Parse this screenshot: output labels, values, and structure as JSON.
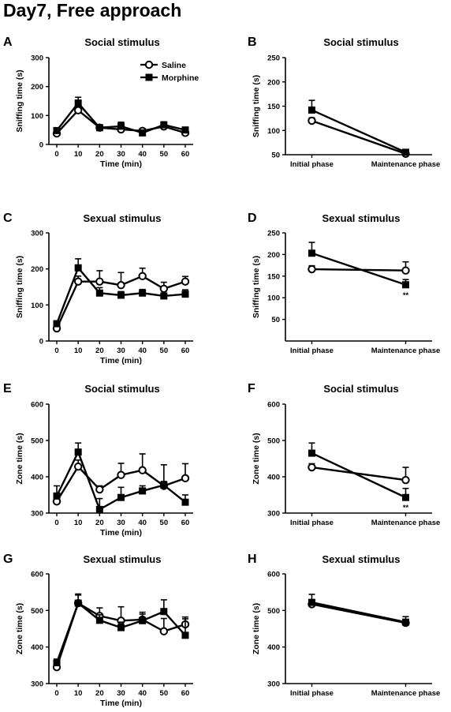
{
  "figure": {
    "title": "Day7, Free approach"
  },
  "legend": {
    "items": [
      "Saline",
      "Morphine"
    ]
  },
  "chart_data": [
    {
      "letter": "A",
      "type": "line",
      "title": "Social stimulus",
      "xlabel": "Time (min)",
      "ylabel": "Sniffing time (s)",
      "x": [
        0,
        10,
        20,
        30,
        40,
        50,
        60
      ],
      "xticks": [
        "0",
        "10",
        "20",
        "30",
        "40",
        "50",
        "60"
      ],
      "ylim": [
        0,
        300
      ],
      "yticks": [
        0,
        100,
        200,
        300
      ],
      "series": [
        {
          "name": "Saline",
          "marker": "circle",
          "values": [
            38,
            118,
            58,
            52,
            47,
            62,
            40
          ],
          "err": [
            5,
            12,
            5,
            12,
            8,
            10,
            13
          ]
        },
        {
          "name": "Morphine",
          "marker": "square",
          "values": [
            48,
            143,
            58,
            63,
            40,
            68,
            50
          ],
          "err": [
            5,
            20,
            5,
            14,
            10,
            10,
            8
          ]
        }
      ]
    },
    {
      "letter": "B",
      "type": "line",
      "title": "Social stimulus",
      "xlabel": "",
      "ylabel": "Sniffing time (s)",
      "x": [
        "Initial phase",
        "Maintenance phase"
      ],
      "xticks": [
        "Initial phase",
        "Maintenance phase"
      ],
      "ylim": [
        50,
        250
      ],
      "yticks": [
        50,
        100,
        150,
        200,
        250
      ],
      "series": [
        {
          "name": "Saline",
          "marker": "circle",
          "values": [
            120,
            52
          ],
          "err": [
            6,
            3
          ]
        },
        {
          "name": "Morphine",
          "marker": "square",
          "values": [
            142,
            55
          ],
          "err": [
            20,
            4
          ]
        }
      ]
    },
    {
      "letter": "C",
      "type": "line",
      "title": "Sexual stimulus",
      "xlabel": "Time (min)",
      "ylabel": "Sniffing time (s)",
      "x": [
        0,
        10,
        20,
        30,
        40,
        50,
        60
      ],
      "xticks": [
        "0",
        "10",
        "20",
        "30",
        "40",
        "50",
        "60"
      ],
      "ylim": [
        0,
        300
      ],
      "yticks": [
        0,
        100,
        200,
        300
      ],
      "series": [
        {
          "name": "Saline",
          "marker": "circle",
          "values": [
            35,
            165,
            165,
            155,
            180,
            145,
            165
          ],
          "err": [
            5,
            15,
            30,
            35,
            22,
            18,
            14
          ]
        },
        {
          "name": "Morphine",
          "marker": "square",
          "values": [
            48,
            203,
            133,
            127,
            133,
            125,
            130
          ],
          "err": [
            6,
            25,
            15,
            10,
            10,
            8,
            12
          ]
        }
      ]
    },
    {
      "letter": "D",
      "type": "line",
      "title": "Sexual stimulus",
      "xlabel": "",
      "ylabel": "Sniffing time (s)",
      "x": [
        "Initial phase",
        "Maintenance phase"
      ],
      "xticks": [
        "Initial phase",
        "Maintenance phase"
      ],
      "ylim": [
        0,
        250
      ],
      "yticks": [
        50,
        100,
        150,
        200,
        250
      ],
      "annotations": [
        {
          "x": "Maintenance phase",
          "text": "**"
        }
      ],
      "series": [
        {
          "name": "Saline",
          "marker": "circle",
          "values": [
            166,
            163
          ],
          "err": [
            8,
            20
          ]
        },
        {
          "name": "Morphine",
          "marker": "square",
          "values": [
            203,
            130
          ],
          "err": [
            25,
            12
          ]
        }
      ]
    },
    {
      "letter": "E",
      "type": "line",
      "title": "Social stimulus",
      "xlabel": "Time (min)",
      "ylabel": "Zone time (s)",
      "x": [
        0,
        10,
        20,
        30,
        40,
        50,
        60
      ],
      "xticks": [
        "0",
        "10",
        "20",
        "30",
        "40",
        "50",
        "60"
      ],
      "ylim": [
        300,
        600
      ],
      "yticks": [
        300,
        400,
        500,
        600
      ],
      "series": [
        {
          "name": "Saline",
          "marker": "circle",
          "values": [
            332,
            428,
            365,
            405,
            418,
            375,
            396
          ],
          "err": [
            12,
            18,
            10,
            32,
            45,
            58,
            40
          ]
        },
        {
          "name": "Morphine",
          "marker": "square",
          "values": [
            347,
            468,
            310,
            343,
            361,
            377,
            330
          ],
          "err": [
            28,
            25,
            30,
            28,
            14,
            10,
            20
          ]
        }
      ]
    },
    {
      "letter": "F",
      "type": "line",
      "title": "Social stimulus",
      "xlabel": "",
      "ylabel": "Zone time (s)",
      "x": [
        "Initial phase",
        "Maintenance phase"
      ],
      "xticks": [
        "Initial phase",
        "Maintenance phase"
      ],
      "ylim": [
        300,
        600
      ],
      "yticks": [
        300,
        400,
        500,
        600
      ],
      "annotations": [
        {
          "x": "Maintenance phase",
          "text": "**"
        }
      ],
      "series": [
        {
          "name": "Saline",
          "marker": "circle",
          "values": [
            426,
            391
          ],
          "err": [
            10,
            35
          ]
        },
        {
          "name": "Morphine",
          "marker": "square",
          "values": [
            465,
            343
          ],
          "err": [
            28,
            25
          ]
        }
      ]
    },
    {
      "letter": "G",
      "type": "line",
      "title": "Sexual stimulus",
      "xlabel": "Time (min)",
      "ylabel": "Zone time (s)",
      "x": [
        0,
        10,
        20,
        30,
        40,
        50,
        60
      ],
      "xticks": [
        "0",
        "10",
        "20",
        "30",
        "40",
        "50",
        "60"
      ],
      "ylim": [
        300,
        600
      ],
      "yticks": [
        300,
        400,
        500,
        600
      ],
      "series": [
        {
          "name": "Saline",
          "marker": "circle",
          "values": [
            345,
            520,
            485,
            472,
            475,
            443,
            462
          ],
          "err": [
            10,
            22,
            22,
            38,
            20,
            35,
            20
          ]
        },
        {
          "name": "Morphine",
          "marker": "square",
          "values": [
            357,
            520,
            473,
            453,
            472,
            497,
            432
          ],
          "err": [
            10,
            25,
            15,
            15,
            18,
            32,
            45
          ]
        }
      ]
    },
    {
      "letter": "H",
      "type": "line",
      "title": "Sexual stimulus",
      "xlabel": "",
      "ylabel": "Zone time (s)",
      "x": [
        "Initial phase",
        "Maintenance phase"
      ],
      "xticks": [
        "Initial phase",
        "Maintenance phase"
      ],
      "ylim": [
        300,
        600
      ],
      "yticks": [
        300,
        400,
        500,
        600
      ],
      "series": [
        {
          "name": "Saline",
          "marker": "circle",
          "values": [
            517,
            466
          ],
          "err": [
            8,
            8
          ]
        },
        {
          "name": "Morphine",
          "marker": "square",
          "values": [
            522,
            468
          ],
          "err": [
            22,
            15
          ]
        }
      ]
    }
  ]
}
